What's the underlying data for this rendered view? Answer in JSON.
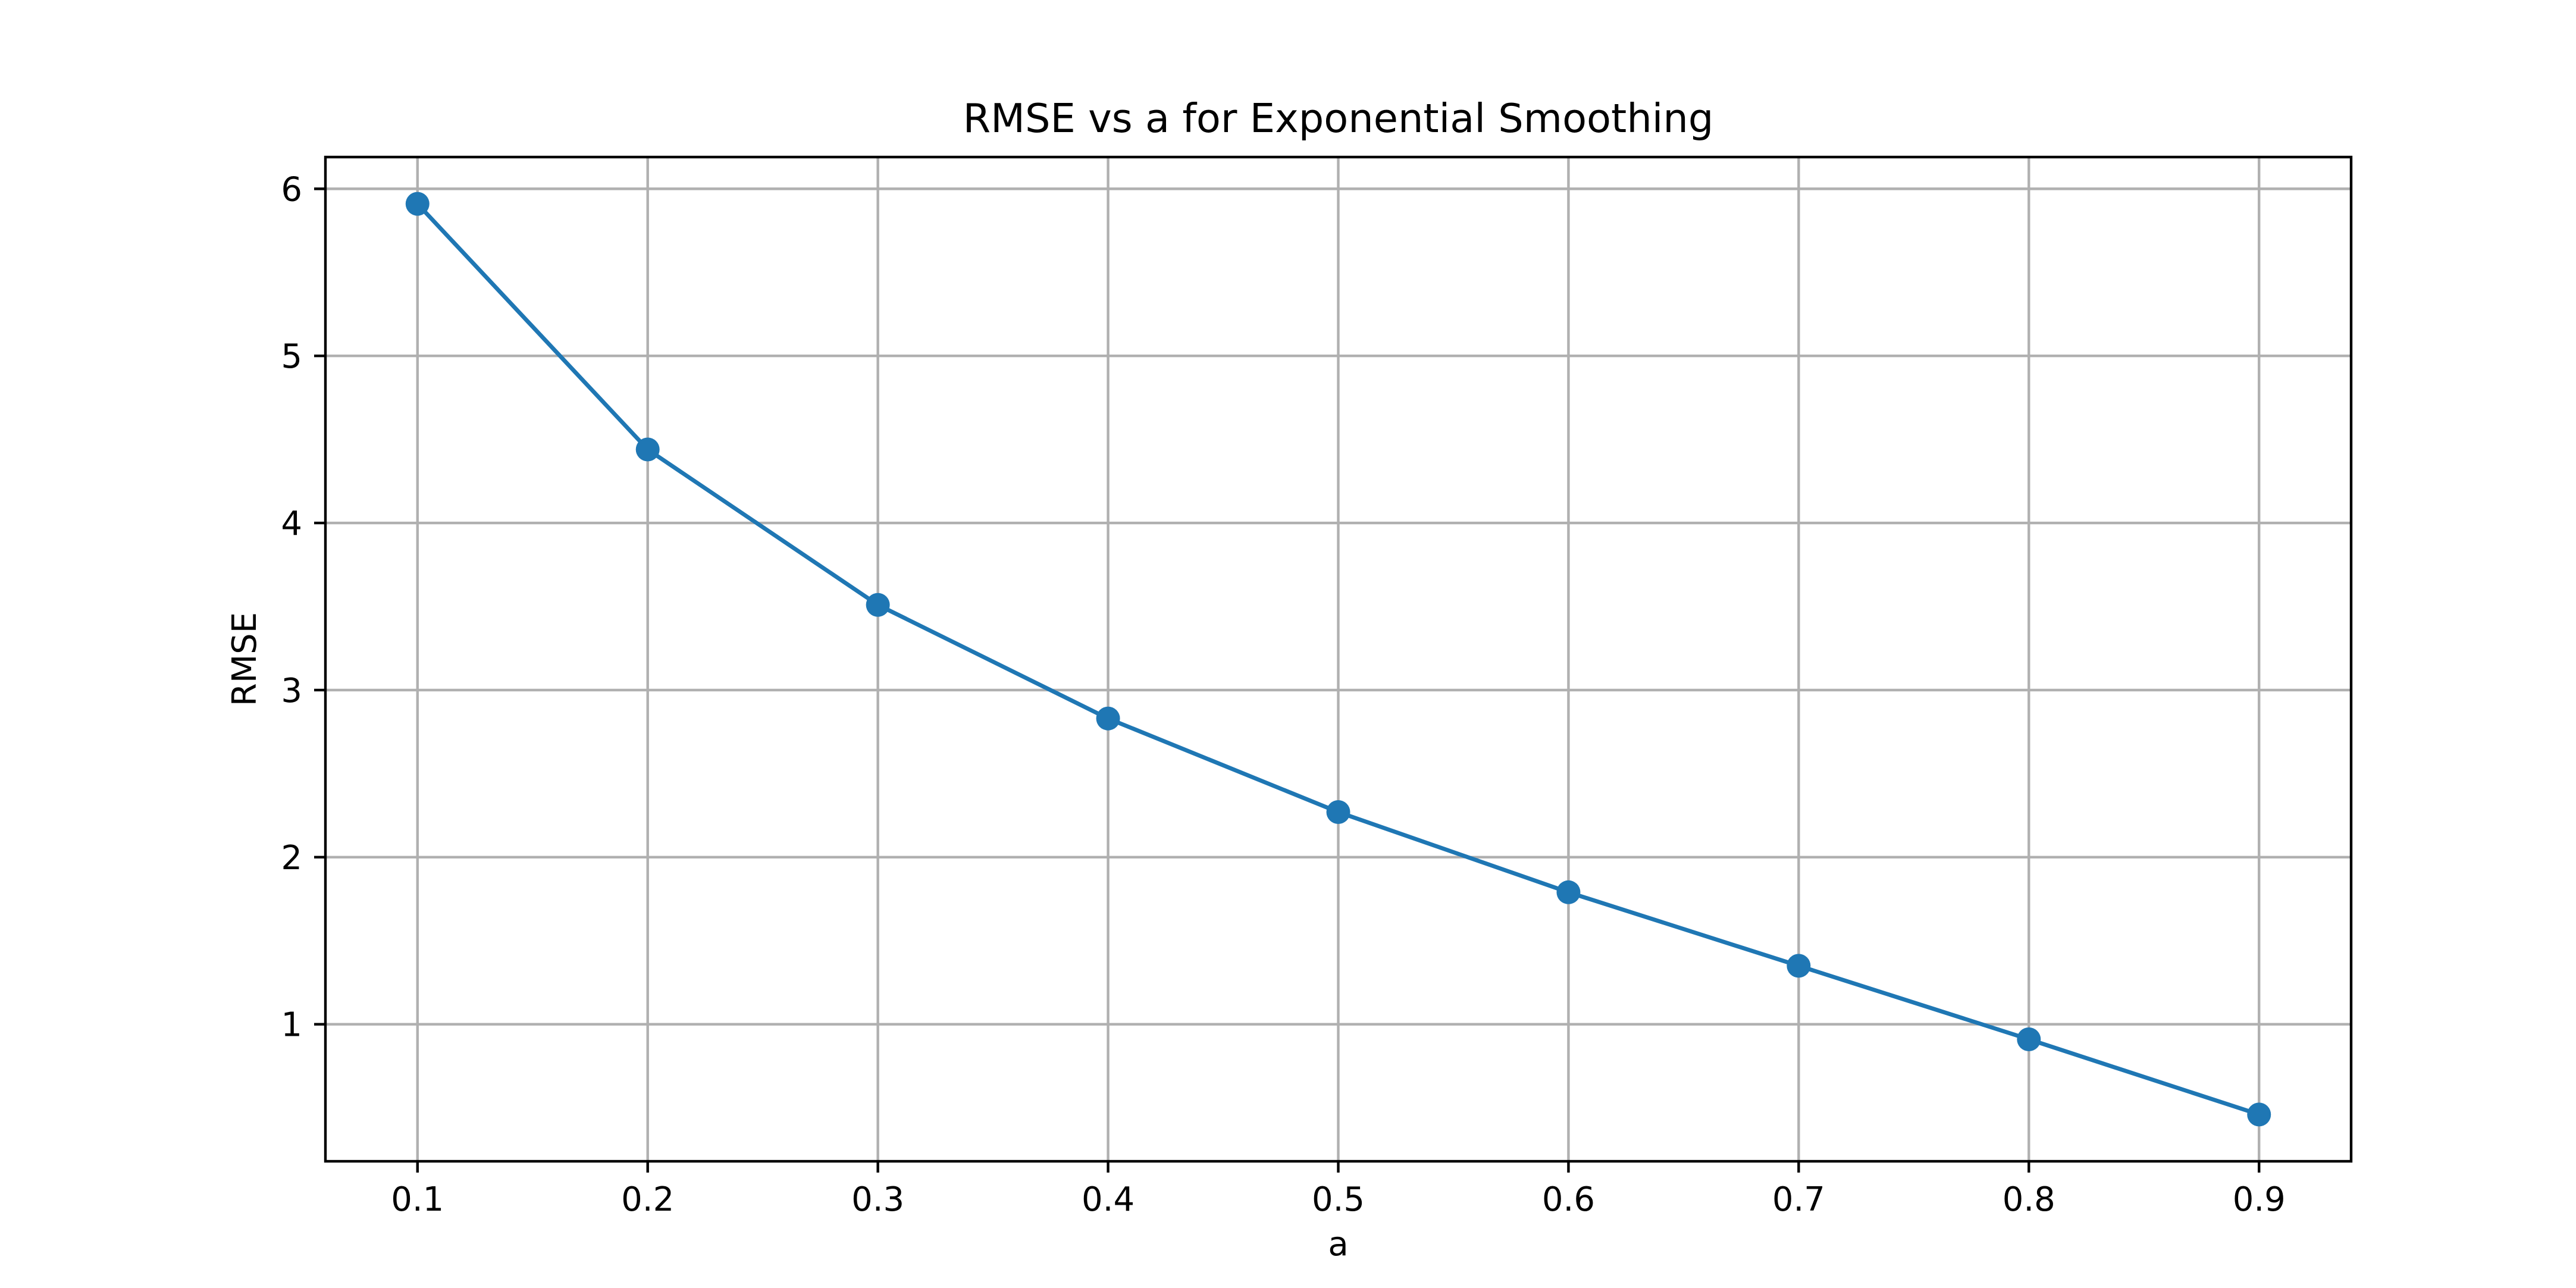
{
  "chart_data": {
    "type": "line",
    "title": "RMSE vs a for Exponential Smoothing",
    "xlabel": "a",
    "ylabel": "RMSE",
    "x": [
      0.1,
      0.2,
      0.3,
      0.4,
      0.5,
      0.6,
      0.7,
      0.8,
      0.9
    ],
    "series": [
      {
        "values": [
          5.91,
          4.44,
          3.51,
          2.83,
          2.27,
          1.79,
          1.35,
          0.91,
          0.46
        ],
        "color": "#1f77b4",
        "marker": "circle"
      }
    ],
    "xticks": [
      0.1,
      0.2,
      0.3,
      0.4,
      0.5,
      0.6,
      0.7,
      0.8,
      0.9
    ],
    "xtick_labels": [
      "0.1",
      "0.2",
      "0.3",
      "0.4",
      "0.5",
      "0.6",
      "0.7",
      "0.8",
      "0.9"
    ],
    "yticks": [
      1,
      2,
      3,
      4,
      5,
      6
    ],
    "ytick_labels": [
      "1",
      "2",
      "3",
      "4",
      "5",
      "6"
    ],
    "xlim": [
      0.06,
      0.94
    ],
    "ylim": [
      0.18,
      6.19
    ],
    "grid": true,
    "legend": false
  }
}
